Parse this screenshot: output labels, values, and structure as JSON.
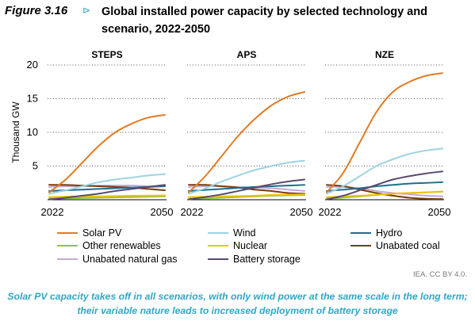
{
  "figure": {
    "label": "Figure 3.16",
    "arrow": "⊳",
    "title": "Global installed power capacity by selected technology and scenario, 2022-2050",
    "source": "IEA. CC BY 4.0.",
    "caption": "Solar PV capacity takes off in all scenarios, with only wind power at the same scale in the long term; their variable nature leads to increased deployment of battery storage"
  },
  "colors": {
    "solar_pv": "#e07b26",
    "wind": "#9dd3e2",
    "hydro": "#1f6f8b",
    "other_renewables": "#8cc63f",
    "nuclear": "#f2c200",
    "unabated_coal": "#7a3b0e",
    "unabated_natural_gas": "#c3a9d6",
    "battery_storage": "#5b4a72"
  },
  "chart_data": {
    "type": "line",
    "ylabel": "Thousand GW",
    "ylim": [
      0,
      20
    ],
    "yticks": [
      5,
      10,
      15,
      20
    ],
    "x": [
      2022,
      2026,
      2030,
      2034,
      2038,
      2042,
      2046,
      2050
    ],
    "xtick_labels": [
      "2022",
      "2050"
    ],
    "grid": "horizontal dotted",
    "legend_position": "bottom",
    "legend": [
      {
        "key": "solar_pv",
        "label": "Solar PV"
      },
      {
        "key": "wind",
        "label": "Wind"
      },
      {
        "key": "hydro",
        "label": "Hydro"
      },
      {
        "key": "other_renewables",
        "label": "Other renewables"
      },
      {
        "key": "nuclear",
        "label": "Nuclear"
      },
      {
        "key": "unabated_coal",
        "label": "Unabated coal"
      },
      {
        "key": "unabated_natural_gas",
        "label": "Unabated natural gas"
      },
      {
        "key": "battery_storage",
        "label": "Battery storage"
      }
    ],
    "panels": [
      {
        "name": "STEPS",
        "series": [
          {
            "key": "unabated_natural_gas",
            "values": [
              1.9,
              2.0,
              2.0,
              2.1,
              2.1,
              2.1,
              2.0,
              2.0
            ]
          },
          {
            "key": "unabated_coal",
            "values": [
              2.2,
              2.2,
              2.1,
              2.0,
              1.9,
              1.8,
              1.6,
              1.4
            ]
          },
          {
            "key": "other_renewables",
            "values": [
              0.15,
              0.2,
              0.25,
              0.3,
              0.35,
              0.4,
              0.45,
              0.5
            ]
          },
          {
            "key": "nuclear",
            "values": [
              0.4,
              0.45,
              0.5,
              0.5,
              0.55,
              0.6,
              0.6,
              0.65
            ]
          },
          {
            "key": "hydro",
            "values": [
              1.3,
              1.4,
              1.5,
              1.6,
              1.7,
              1.8,
              1.9,
              2.0
            ]
          },
          {
            "key": "battery_storage",
            "values": [
              0.05,
              0.3,
              0.6,
              0.9,
              1.3,
              1.6,
              1.9,
              2.2
            ]
          },
          {
            "key": "wind",
            "values": [
              0.9,
              1.4,
              2.0,
              2.6,
              3.0,
              3.3,
              3.6,
              3.8
            ]
          },
          {
            "key": "solar_pv",
            "values": [
              1.1,
              3.0,
              5.5,
              8.0,
              10.0,
              11.3,
              12.2,
              12.6
            ]
          }
        ]
      },
      {
        "name": "APS",
        "series": [
          {
            "key": "unabated_natural_gas",
            "values": [
              1.9,
              2.0,
              2.0,
              1.9,
              1.8,
              1.7,
              1.5,
              1.3
            ]
          },
          {
            "key": "unabated_coal",
            "values": [
              2.2,
              2.2,
              2.0,
              1.8,
              1.5,
              1.3,
              1.0,
              0.9
            ]
          },
          {
            "key": "other_renewables",
            "values": [
              0.15,
              0.2,
              0.3,
              0.4,
              0.5,
              0.6,
              0.65,
              0.7
            ]
          },
          {
            "key": "nuclear",
            "values": [
              0.4,
              0.45,
              0.5,
              0.55,
              0.6,
              0.7,
              0.75,
              0.8
            ]
          },
          {
            "key": "hydro",
            "values": [
              1.3,
              1.45,
              1.6,
              1.75,
              1.9,
              2.0,
              2.1,
              2.2
            ]
          },
          {
            "key": "battery_storage",
            "values": [
              0.05,
              0.4,
              0.8,
              1.3,
              1.8,
              2.3,
              2.7,
              3.0
            ]
          },
          {
            "key": "wind",
            "values": [
              0.9,
              1.7,
              2.7,
              3.6,
              4.4,
              5.0,
              5.5,
              5.8
            ]
          },
          {
            "key": "solar_pv",
            "values": [
              1.1,
              3.5,
              6.5,
              9.5,
              12.0,
              14.0,
              15.3,
              16.0
            ]
          }
        ]
      },
      {
        "name": "NZE",
        "series": [
          {
            "key": "unabated_natural_gas",
            "values": [
              1.9,
              1.9,
              1.7,
              1.3,
              1.0,
              0.8,
              0.6,
              0.5
            ]
          },
          {
            "key": "unabated_coal",
            "values": [
              2.2,
              2.0,
              1.5,
              1.0,
              0.6,
              0.3,
              0.15,
              0.1
            ]
          },
          {
            "key": "other_renewables",
            "values": [
              0.15,
              0.3,
              0.5,
              0.7,
              0.9,
              1.0,
              1.1,
              1.2
            ]
          },
          {
            "key": "nuclear",
            "values": [
              0.4,
              0.5,
              0.6,
              0.75,
              0.9,
              1.0,
              1.1,
              1.2
            ]
          },
          {
            "key": "hydro",
            "values": [
              1.3,
              1.5,
              1.7,
              2.0,
              2.2,
              2.4,
              2.5,
              2.6
            ]
          },
          {
            "key": "battery_storage",
            "values": [
              0.05,
              0.6,
              1.4,
              2.2,
              3.0,
              3.5,
              3.9,
              4.2
            ]
          },
          {
            "key": "wind",
            "values": [
              0.9,
              2.0,
              3.5,
              5.0,
              6.0,
              6.8,
              7.3,
              7.6
            ]
          },
          {
            "key": "solar_pv",
            "values": [
              1.1,
              4.0,
              8.5,
              13.0,
              16.0,
              17.5,
              18.4,
              18.8
            ]
          }
        ]
      }
    ]
  }
}
